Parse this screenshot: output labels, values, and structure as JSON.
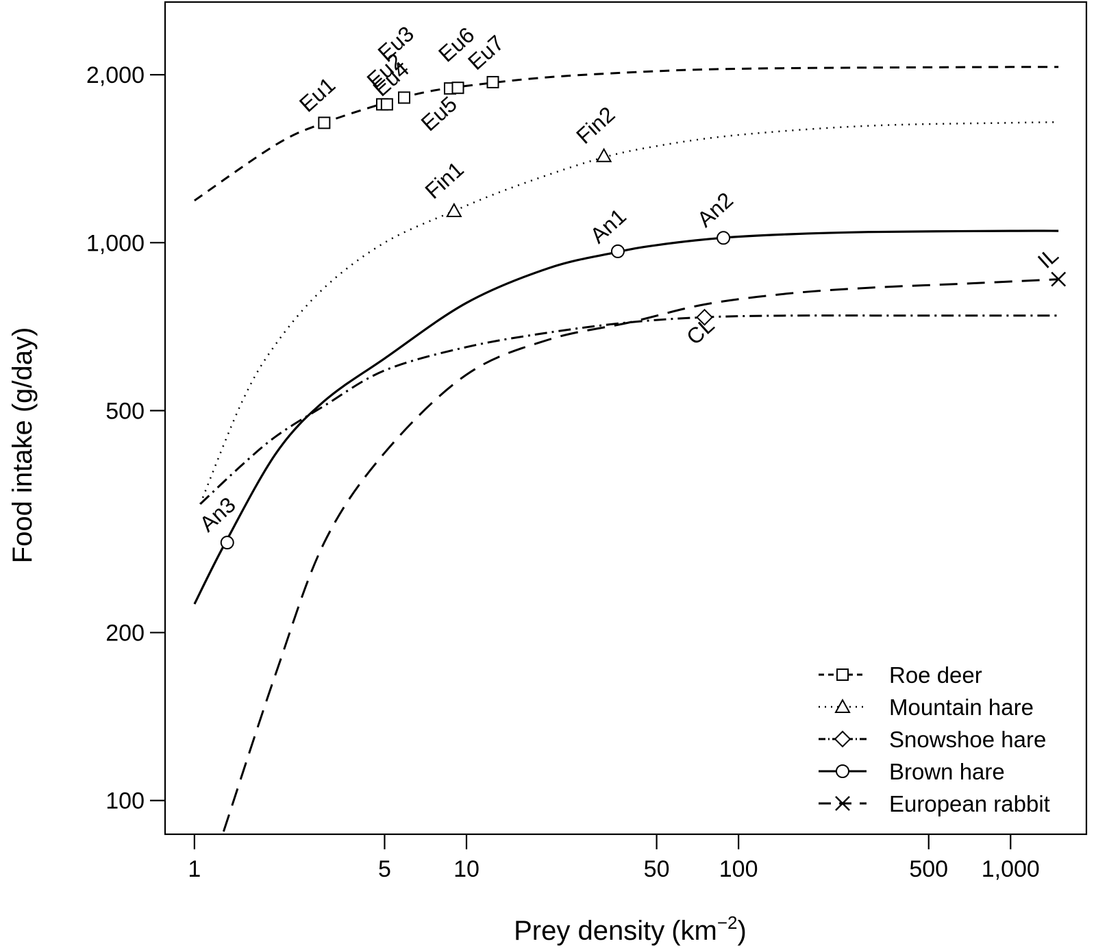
{
  "chart_data": {
    "type": "line",
    "xlabel": "Prey density",
    "xunit": "(km",
    "xunit_sup": "−2",
    "xunit_close": ")",
    "ylabel": "Food intake (g/day)",
    "x_scale": "log",
    "y_scale": "log",
    "xlim": [
      0.78,
      1900
    ],
    "ylim": [
      87,
      2700
    ],
    "x_ticks": [
      {
        "value": 1,
        "label": "1"
      },
      {
        "value": 5,
        "label": "5"
      },
      {
        "value": 10,
        "label": "10"
      },
      {
        "value": 50,
        "label": "50"
      },
      {
        "value": 100,
        "label": "100"
      },
      {
        "value": 500,
        "label": "500"
      },
      {
        "value": 1000,
        "label": "1,000"
      }
    ],
    "y_ticks": [
      {
        "value": 100,
        "label": "100"
      },
      {
        "value": 200,
        "label": "200"
      },
      {
        "value": 500,
        "label": "500"
      },
      {
        "value": 1000,
        "label": "1,000"
      },
      {
        "value": 2000,
        "label": "2,000"
      }
    ],
    "grid": false,
    "legend_position": "bottom-right",
    "series": [
      {
        "name": "Roe deer",
        "dash": "14,10",
        "width": 3,
        "marker": "square",
        "curve": {
          "x": [
            1,
            2,
            3,
            5,
            7,
            10,
            20,
            50,
            100,
            300,
            1000,
            1500
          ],
          "y": [
            1190,
            1500,
            1640,
            1780,
            1860,
            1910,
            1980,
            2030,
            2050,
            2060,
            2065,
            2065
          ]
        },
        "points": [
          {
            "x": 3.0,
            "y": 1640,
            "label": "Eu1"
          },
          {
            "x": 4.9,
            "y": 1770,
            "label": "Eu2"
          },
          {
            "x": 5.1,
            "y": 1770,
            "label": "Eu4"
          },
          {
            "x": 5.9,
            "y": 1820,
            "label": "Eu3"
          },
          {
            "x": 8.7,
            "y": 1890,
            "label": "Eu5"
          },
          {
            "x": 9.3,
            "y": 1895,
            "label": "Eu6"
          },
          {
            "x": 12.5,
            "y": 1940,
            "label": "Eu7"
          }
        ]
      },
      {
        "name": "Mountain hare",
        "dash": "2,8",
        "width": 2.5,
        "marker": "triangle",
        "curve": {
          "x": [
            1.05,
            1.5,
            2,
            3,
            5,
            9,
            15,
            30,
            50,
            100,
            300,
            1000,
            1500
          ],
          "y": [
            340,
            520,
            660,
            830,
            1000,
            1140,
            1260,
            1410,
            1490,
            1560,
            1620,
            1640,
            1645
          ]
        },
        "points": [
          {
            "x": 9,
            "y": 1140,
            "label": "Fin1"
          },
          {
            "x": 32,
            "y": 1430,
            "label": "Fin2"
          }
        ]
      },
      {
        "name": "Snowshoe hare",
        "dash": "18,7,3,7",
        "width": 3,
        "marker": "diamond",
        "curve": {
          "x": [
            1.05,
            1.5,
            2,
            3,
            5,
            10,
            20,
            40,
            75,
            150,
            500,
            1500
          ],
          "y": [
            340,
            400,
            450,
            510,
            590,
            650,
            690,
            720,
            735,
            740,
            740,
            740
          ]
        },
        "points": [
          {
            "x": 75,
            "y": 735,
            "label": "CL"
          }
        ]
      },
      {
        "name": "Brown hare",
        "dash": "",
        "width": 3.2,
        "marker": "circle",
        "curve": {
          "x": [
            1,
            1.3,
            2,
            3,
            5,
            10,
            20,
            35,
            50,
            87,
            150,
            300,
            1000,
            1500
          ],
          "y": [
            225,
            290,
            420,
            520,
            620,
            780,
            900,
            960,
            990,
            1020,
            1035,
            1045,
            1050,
            1050
          ]
        },
        "points": [
          {
            "x": 1.32,
            "y": 290,
            "label": "An3"
          },
          {
            "x": 36,
            "y": 965,
            "label": "An1"
          },
          {
            "x": 88,
            "y": 1020,
            "label": "An2"
          }
        ]
      },
      {
        "name": "European rabbit",
        "dash": "26,14",
        "width": 3,
        "marker": "cross",
        "curve": {
          "x": [
            1.28,
            2,
            3,
            5,
            10,
            20,
            40,
            75,
            150,
            300,
            700,
            1500
          ],
          "y": [
            88,
            170,
            290,
            420,
            580,
            670,
            720,
            775,
            810,
            830,
            845,
            860
          ]
        },
        "points": [
          {
            "x": 1500,
            "y": 860,
            "label": "IL"
          }
        ]
      }
    ]
  }
}
